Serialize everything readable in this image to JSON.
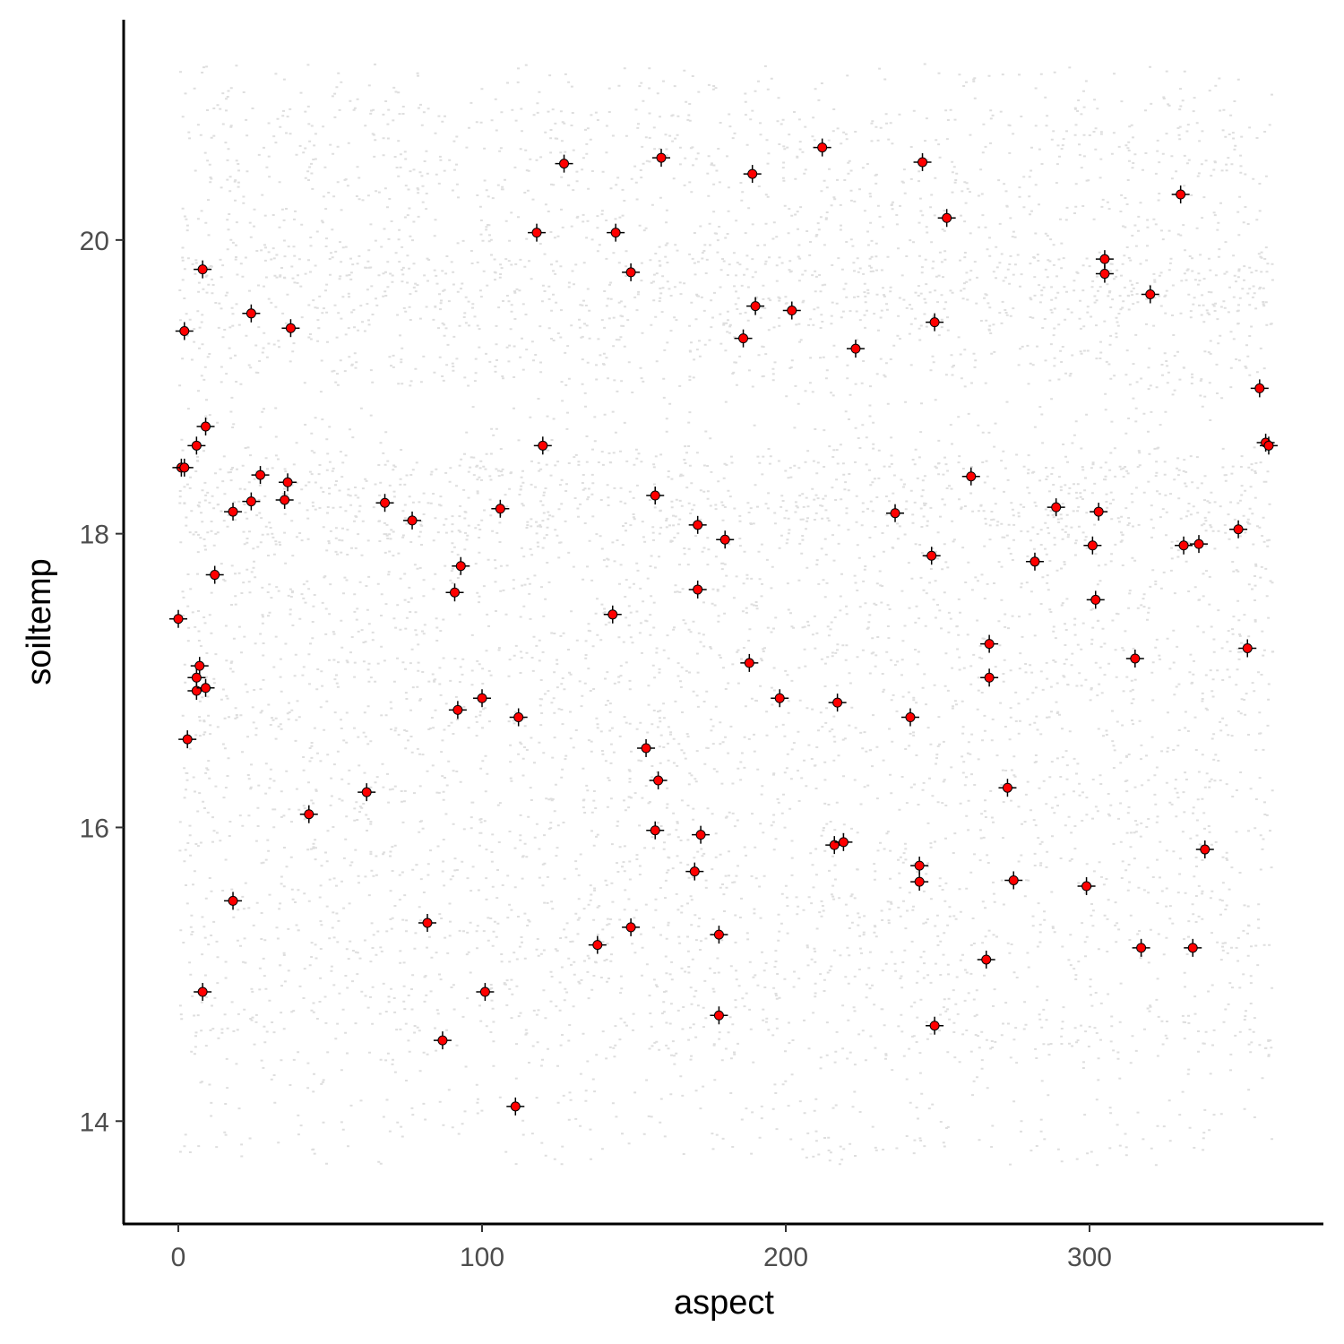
{
  "chart_data": {
    "type": "scatter",
    "title": "",
    "xlabel": "aspect",
    "ylabel": "soiltemp",
    "xlim": [
      -18,
      377
    ],
    "ylim": [
      13.3,
      21.5
    ],
    "x_ticks": [
      0,
      100,
      200,
      300
    ],
    "x_tick_labels": [
      "0",
      "100",
      "200",
      "300"
    ],
    "y_ticks": [
      14,
      16,
      18,
      20
    ],
    "y_tick_labels": [
      "14",
      "16",
      "18",
      "20"
    ],
    "grid": false,
    "legend": "none",
    "colors": {
      "background_points": "#000000",
      "highlight_points": "#ff0000",
      "highlight_outline": "#000000"
    },
    "background_points": {
      "description": "dense cloud of small translucent grey points",
      "x_range": [
        0,
        360
      ],
      "y_range": [
        13.7,
        21.2
      ],
      "dense_bands": [
        [
          19.4,
          19.9
        ],
        [
          17.9,
          18.5
        ]
      ],
      "sparse_band": [
        18.6,
        19.0
      ]
    },
    "series": [
      {
        "x": [
          8,
          2,
          24,
          37,
          1,
          6,
          9,
          2,
          27,
          24,
          36,
          35,
          18,
          12,
          0,
          7,
          6,
          6,
          9,
          3,
          62,
          43,
          18,
          82,
          8,
          87,
          111,
          101,
          92,
          93,
          91,
          100,
          112,
          120,
          106,
          77,
          68,
          118,
          127,
          144,
          149,
          157,
          143,
          138,
          149,
          158,
          157,
          154,
          159,
          171,
          171,
          172,
          170,
          178,
          180,
          178,
          190,
          188,
          189,
          186,
          198,
          202,
          212,
          217,
          216,
          219,
          223,
          236,
          241,
          244,
          248,
          249,
          245,
          244,
          249,
          253,
          266,
          267,
          261,
          267,
          273,
          275,
          282,
          289,
          299,
          301,
          302,
          303,
          305,
          305,
          315,
          317,
          320,
          330,
          334,
          331,
          336,
          338,
          349,
          352,
          356,
          358,
          359
        ],
        "y": [
          19.8,
          19.38,
          19.5,
          19.4,
          18.45,
          18.6,
          18.73,
          18.45,
          18.4,
          18.22,
          18.35,
          18.23,
          18.15,
          17.72,
          17.42,
          17.1,
          17.02,
          16.93,
          16.95,
          16.6,
          16.24,
          16.09,
          15.5,
          15.35,
          14.88,
          14.55,
          14.1,
          14.88,
          16.8,
          17.78,
          17.6,
          16.88,
          16.75,
          18.6,
          18.17,
          18.09,
          18.21,
          20.05,
          20.52,
          20.05,
          19.78,
          18.26,
          17.45,
          15.2,
          15.32,
          16.32,
          15.98,
          16.54,
          20.56,
          18.06,
          17.62,
          15.95,
          15.7,
          15.27,
          17.96,
          14.72,
          19.55,
          17.12,
          20.45,
          19.33,
          16.88,
          19.52,
          20.63,
          16.85,
          15.88,
          15.9,
          19.26,
          18.14,
          16.75,
          15.74,
          17.85,
          19.44,
          20.53,
          15.63,
          14.65,
          20.15,
          15.1,
          17.25,
          18.39,
          17.02,
          16.27,
          15.64,
          17.81,
          18.18,
          15.6,
          17.92,
          17.55,
          18.15,
          19.87,
          19.77,
          17.15,
          15.18,
          19.63,
          20.31,
          15.18,
          17.92,
          17.93,
          15.85,
          18.03,
          17.22,
          18.99,
          18.62,
          18.6
        ]
      }
    ]
  }
}
